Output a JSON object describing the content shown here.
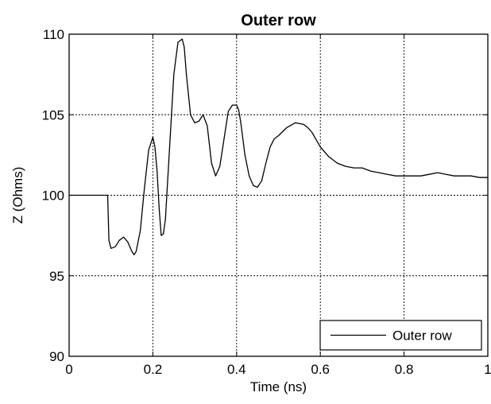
{
  "chart_data": {
    "type": "line",
    "title": "Outer row",
    "xlabel": "Time (ns)",
    "ylabel": "Z (Ohms)",
    "xlim": [
      0,
      1
    ],
    "ylim": [
      90,
      110
    ],
    "xticks": [
      0,
      0.2,
      0.4,
      0.6,
      0.8,
      1
    ],
    "xtick_labels": [
      "0",
      "0.2",
      "0.4",
      "0.6",
      "0.8",
      "1"
    ],
    "yticks": [
      90,
      95,
      100,
      105,
      110
    ],
    "ytick_labels": [
      "90",
      "95",
      "100",
      "105",
      "110"
    ],
    "grid": true,
    "legend_position": "bottom-right",
    "line_color": "#000000",
    "series": [
      {
        "name": "Outer row",
        "x": [
          0,
          0.05,
          0.092,
          0.095,
          0.1,
          0.11,
          0.12,
          0.13,
          0.14,
          0.15,
          0.155,
          0.16,
          0.17,
          0.18,
          0.19,
          0.2,
          0.205,
          0.21,
          0.215,
          0.22,
          0.225,
          0.23,
          0.24,
          0.25,
          0.26,
          0.27,
          0.275,
          0.28,
          0.29,
          0.3,
          0.31,
          0.32,
          0.33,
          0.34,
          0.35,
          0.36,
          0.37,
          0.38,
          0.39,
          0.4,
          0.405,
          0.41,
          0.42,
          0.43,
          0.44,
          0.45,
          0.46,
          0.47,
          0.48,
          0.49,
          0.5,
          0.52,
          0.54,
          0.56,
          0.57,
          0.58,
          0.6,
          0.62,
          0.64,
          0.66,
          0.68,
          0.7,
          0.72,
          0.74,
          0.76,
          0.78,
          0.8,
          0.82,
          0.84,
          0.86,
          0.88,
          0.9,
          0.92,
          0.94,
          0.96,
          0.98,
          1.0
        ],
        "y": [
          100,
          100,
          100,
          97.2,
          96.7,
          96.8,
          97.2,
          97.4,
          97.1,
          96.5,
          96.3,
          96.5,
          97.8,
          100.5,
          102.8,
          103.6,
          103.0,
          101.5,
          99.2,
          97.5,
          97.6,
          98.5,
          103.0,
          107.5,
          109.5,
          109.7,
          109.2,
          107.5,
          105.0,
          104.5,
          104.6,
          105.0,
          104.3,
          102.0,
          101.2,
          101.8,
          103.5,
          105.2,
          105.6,
          105.6,
          105.3,
          104.5,
          102.5,
          101.2,
          100.6,
          100.5,
          100.9,
          102.0,
          103.0,
          103.5,
          103.7,
          104.2,
          104.5,
          104.4,
          104.2,
          103.9,
          103.0,
          102.4,
          102.0,
          101.8,
          101.7,
          101.7,
          101.5,
          101.4,
          101.3,
          101.2,
          101.2,
          101.2,
          101.2,
          101.3,
          101.4,
          101.3,
          101.2,
          101.2,
          101.2,
          101.1,
          101.1
        ]
      }
    ]
  }
}
